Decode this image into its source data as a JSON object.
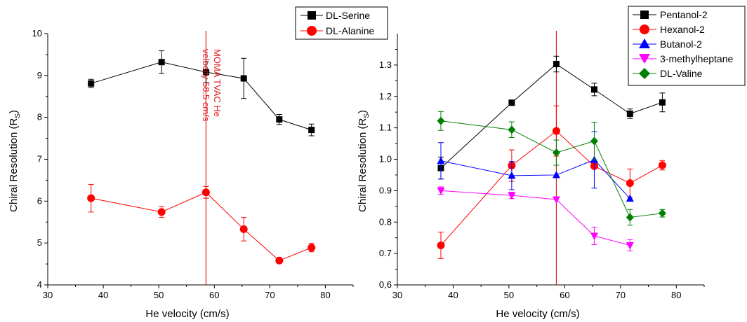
{
  "colors": {
    "black": "#000000",
    "red": "#ff0000",
    "blue": "#0000ff",
    "magenta": "#ff00ff",
    "green": "#008000",
    "vline": "#e31a1c"
  },
  "chart_data": [
    {
      "type": "scatter",
      "xlabel": "He velocity (cm/s)",
      "ylabel": "Chiral Resolution (R",
      "ylabel_sub": "S",
      "ylabel_close": ")",
      "xlim": [
        30,
        85
      ],
      "ylim": [
        4,
        10
      ],
      "xticks": [
        30,
        40,
        50,
        60,
        70,
        80
      ],
      "yticks": [
        4,
        5,
        6,
        7,
        8,
        9,
        10
      ],
      "ytick_labels": [
        "4",
        "5",
        "6",
        "7",
        "8",
        "9",
        "10"
      ],
      "legend_position": "top-right",
      "vertical_line": {
        "x": 58.5,
        "annotation_line1": "MOMA TVAC He",
        "annotation_line2": "velocity 58.5 cm/s"
      },
      "series": [
        {
          "name": "DL-Serine",
          "color": "#000000",
          "marker": "square",
          "x": [
            37.8,
            50.5,
            58.5,
            65.3,
            71.7,
            77.5
          ],
          "y": [
            8.81,
            9.32,
            9.08,
            8.93,
            7.95,
            7.7
          ],
          "err": [
            0.1,
            0.27,
            0.25,
            0.48,
            0.12,
            0.14
          ]
        },
        {
          "name": "DL-Alanine",
          "color": "#ff0000",
          "marker": "circle",
          "x": [
            37.8,
            50.5,
            58.5,
            65.3,
            71.7,
            77.5
          ],
          "y": [
            6.07,
            5.74,
            6.21,
            5.33,
            4.58,
            4.89
          ],
          "err": [
            0.33,
            0.13,
            0.14,
            0.28,
            0.06,
            0.1
          ]
        }
      ]
    },
    {
      "type": "scatter",
      "xlabel": "He  velocity (cm/s)",
      "ylabel": "Chiral Resolution (R",
      "ylabel_sub": "S",
      "ylabel_close": ")",
      "xlim": [
        30,
        85
      ],
      "ylim": [
        0.6,
        1.4
      ],
      "xticks": [
        30,
        40,
        50,
        60,
        70,
        80
      ],
      "yticks": [
        0.6,
        0.7,
        0.8,
        0.9,
        1.0,
        1.1,
        1.2,
        1.3
      ],
      "ytick_labels": [
        "0,6",
        "0.7",
        "0.8",
        "0.9",
        "1.0",
        "1.1",
        "1.2",
        "1.3"
      ],
      "legend_position": "top-right",
      "vertical_line": {
        "x": 58.5
      },
      "series": [
        {
          "name": "Pentanol-2",
          "color": "#000000",
          "marker": "square",
          "x": [
            37.8,
            50.5,
            58.5,
            65.3,
            71.7,
            77.5
          ],
          "y": [
            0.972,
            1.18,
            1.303,
            1.222,
            1.145,
            1.181
          ],
          "err": [
            0.035,
            0.0,
            0.025,
            0.02,
            0.015,
            0.03
          ]
        },
        {
          "name": "Hexanol-2",
          "color": "#ff0000",
          "marker": "circle",
          "x": [
            37.8,
            50.5,
            58.5,
            65.3,
            71.7,
            77.5
          ],
          "y": [
            0.726,
            0.98,
            1.09,
            0.978,
            0.924,
            0.981
          ],
          "err": [
            0.042,
            0.05,
            0.08,
            0.0,
            0.045,
            0.015
          ]
        },
        {
          "name": "Butanol-2",
          "color": "#0000ff",
          "marker": "triangle-up",
          "x": [
            37.8,
            50.5,
            58.5,
            65.3,
            71.7
          ],
          "y": [
            0.995,
            0.948,
            0.95,
            0.998,
            0.875
          ],
          "err": [
            0.058,
            0.045,
            0.0,
            0.09,
            0.0
          ]
        },
        {
          "name": "3-methylheptane",
          "color": "#ff00ff",
          "marker": "triangle-down",
          "x": [
            37.8,
            50.5,
            58.5,
            65.3,
            71.7
          ],
          "y": [
            0.9,
            0.885,
            0.872,
            0.756,
            0.726
          ],
          "err": [
            0.012,
            0.01,
            0.0,
            0.028,
            0.018
          ]
        },
        {
          "name": "DL-Valine",
          "color": "#008000",
          "marker": "diamond",
          "x": [
            37.8,
            50.5,
            58.5,
            65.3,
            71.7,
            77.5
          ],
          "y": [
            1.122,
            1.094,
            1.021,
            1.058,
            0.815,
            0.828
          ],
          "err": [
            0.03,
            0.025,
            0.04,
            0.06,
            0.025,
            0.012
          ]
        }
      ]
    }
  ]
}
